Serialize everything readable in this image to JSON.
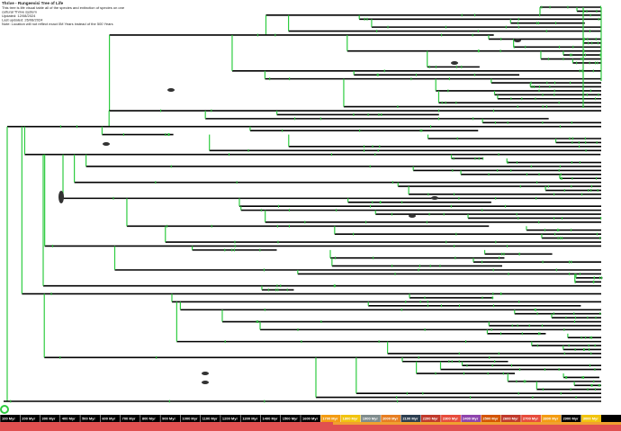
{
  "header": {
    "title": "Thrive - Rungeevisi Tree of Life",
    "lines": [
      "This tree is life visual table all of the species and extinction of species on one",
      "cultural Thrive system",
      "Updated: 12/08/2024",
      "Last updated: 26/08/2024",
      "Note: Location will not reflect exact 0M Years instead of the 500 Years"
    ]
  },
  "timeline": {
    "labels": [
      "100 Myr",
      "200 Myr",
      "300 Myr",
      "400 Myr",
      "500 Myr",
      "600 Myr",
      "700 Myr",
      "800 Myr",
      "900 Myr",
      "1000 Myr",
      "1100 Myr",
      "1200 Myr",
      "1300 Myr",
      "1400 Myr",
      "1500 Myr",
      "1600 Myr",
      "1700 Myr",
      "1800 Myr",
      "1900 Myr",
      "2000 Myr",
      "2100 Myr",
      "2200 Myr",
      "2300 Myr",
      "2400 Myr",
      "2500 Myr",
      "2600 Myr",
      "2700 Myr",
      "2800 Myr",
      "2900 Myr",
      "3000 Myr"
    ]
  }
}
